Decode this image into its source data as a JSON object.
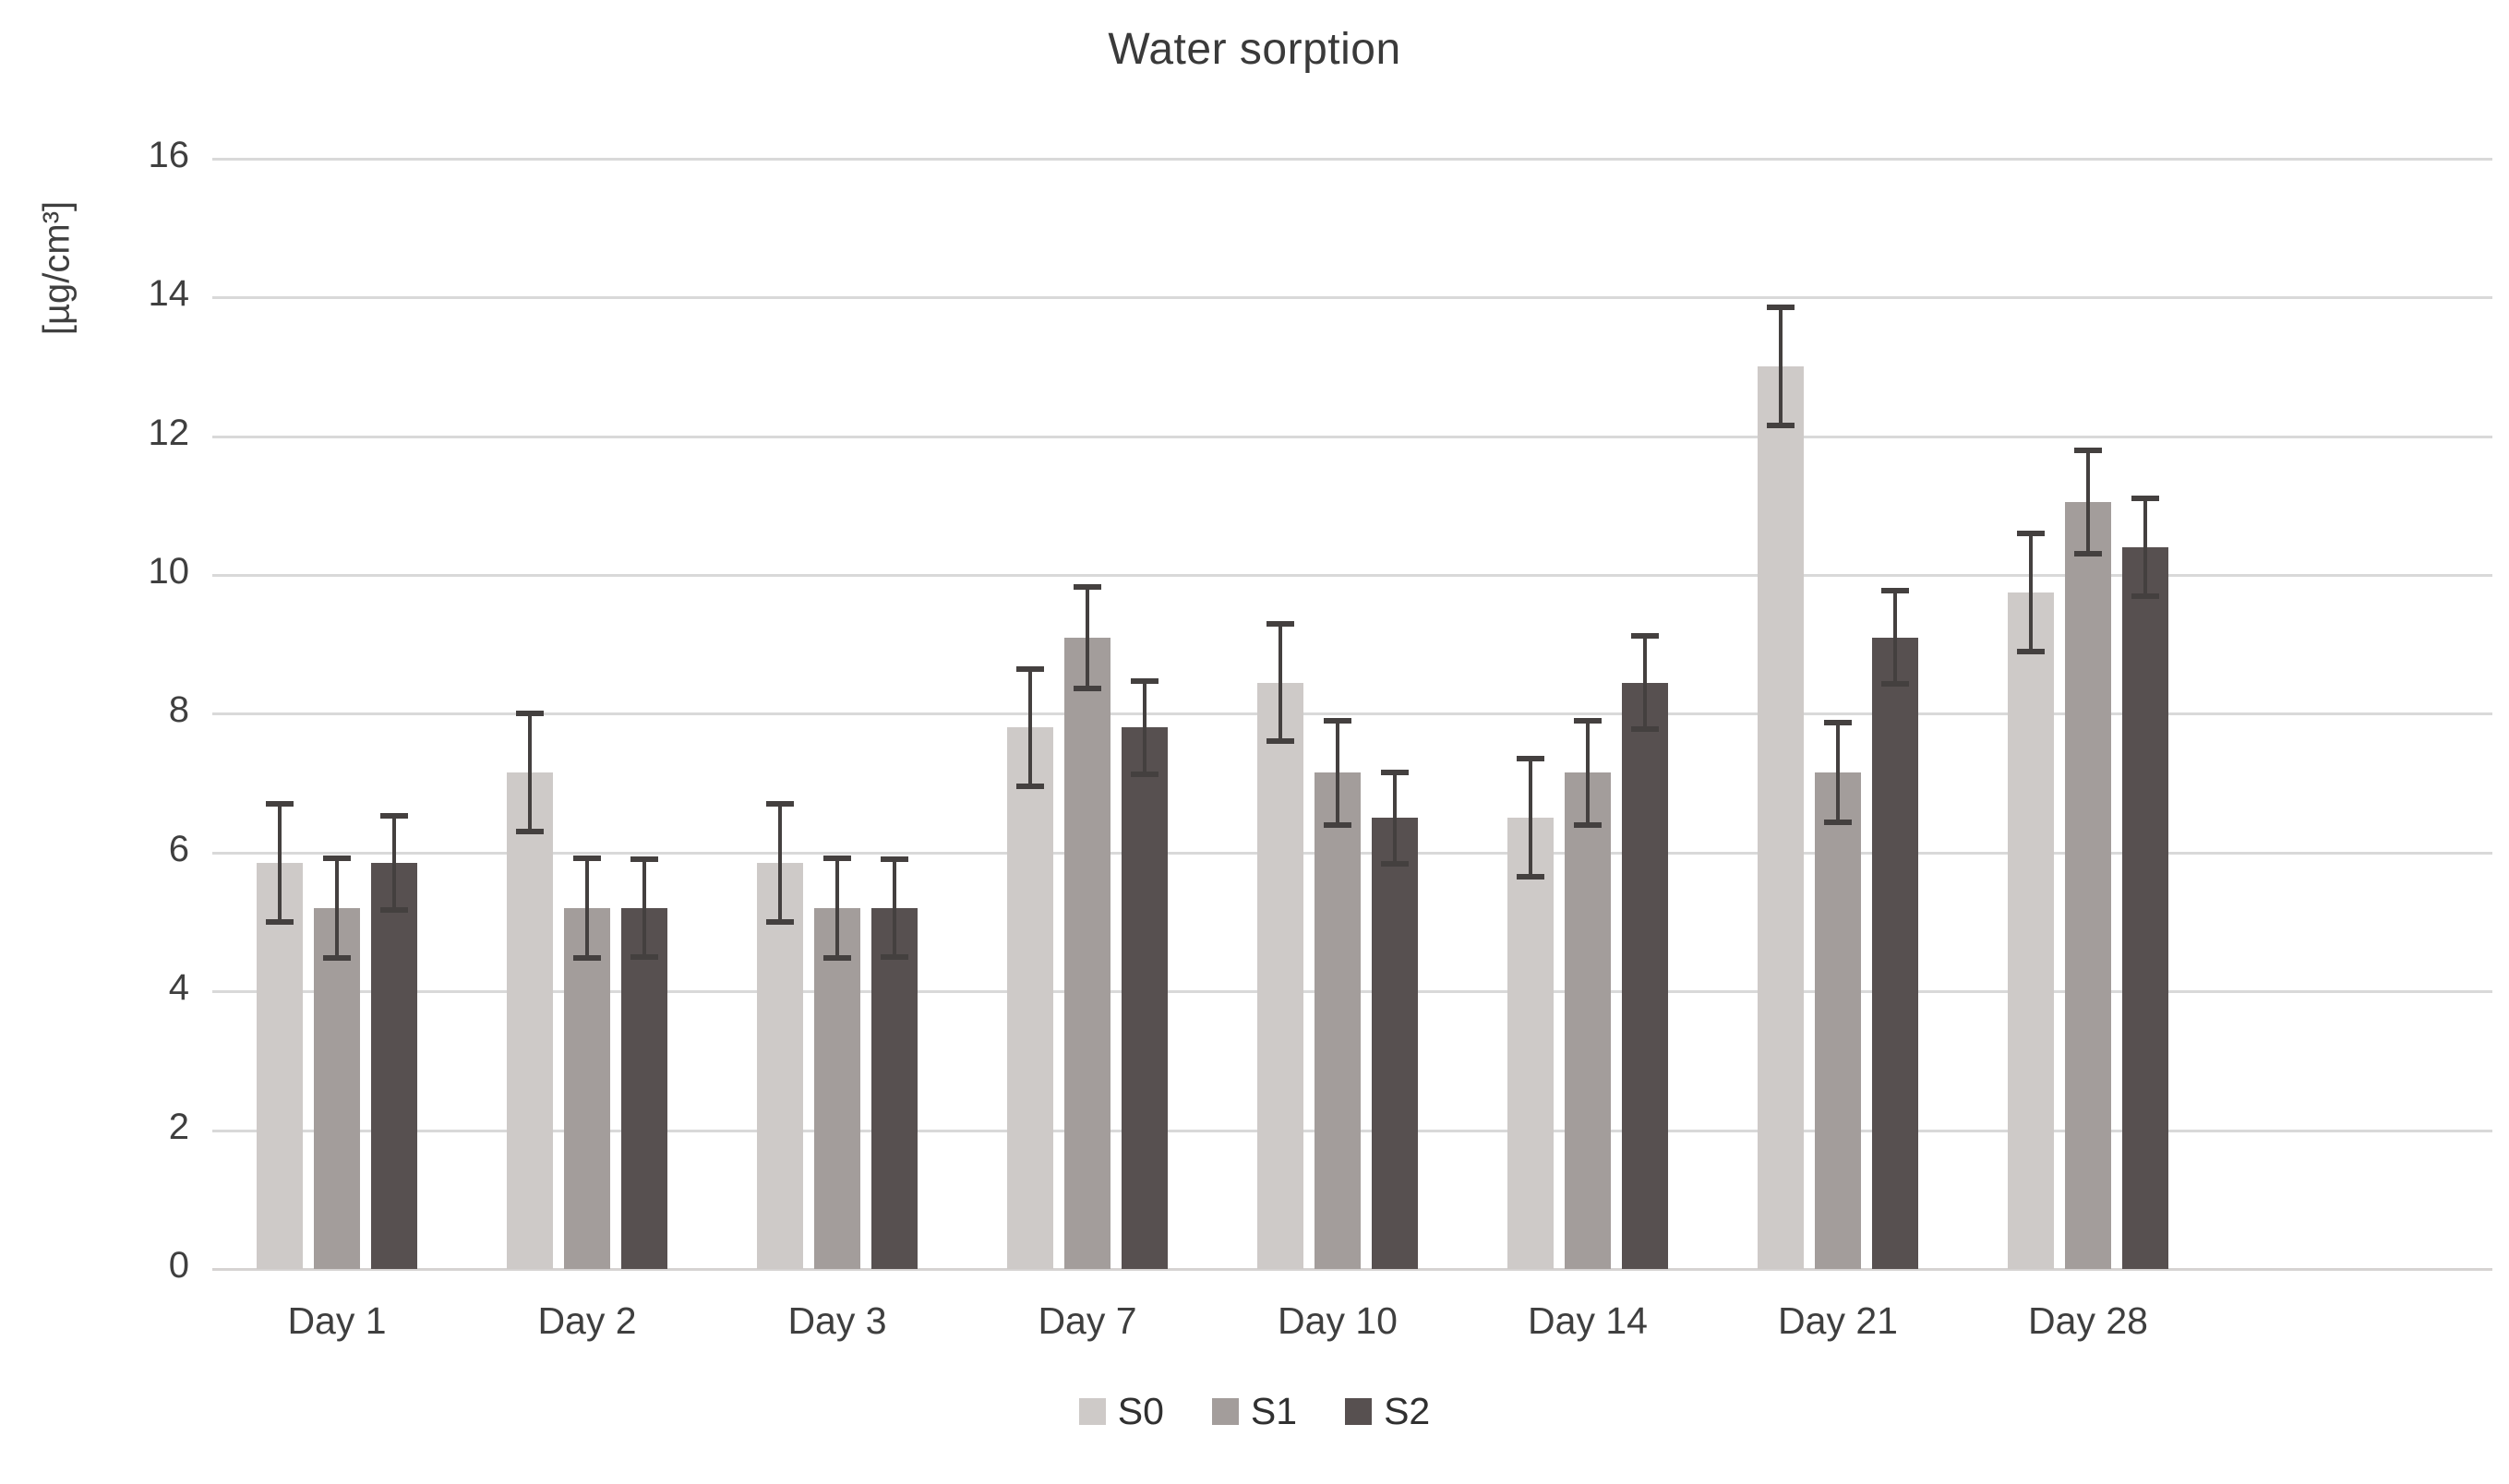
{
  "chart_data": {
    "type": "bar",
    "title": "Water sorption",
    "ylabel": "[µg/cm³]",
    "xlabel": "",
    "categories": [
      "Day 1",
      "Day 2",
      "Day 3",
      "Day 7",
      "Day 10",
      "Day 14",
      "Day 21",
      "Day 28"
    ],
    "series": [
      {
        "name": "S0",
        "color": "#cecac8",
        "values": [
          5.85,
          7.15,
          5.85,
          7.8,
          8.45,
          6.5,
          13.0,
          9.75
        ],
        "errors": [
          0.85,
          0.85,
          0.85,
          0.85,
          0.85,
          0.85,
          0.85,
          0.85
        ]
      },
      {
        "name": "S1",
        "color": "#a39d9b",
        "values": [
          5.2,
          5.2,
          5.2,
          9.1,
          7.15,
          7.15,
          7.15,
          11.05
        ],
        "errors": [
          0.72,
          0.72,
          0.72,
          0.73,
          0.75,
          0.75,
          0.72,
          0.75
        ]
      },
      {
        "name": "S2",
        "color": "#575050",
        "values": [
          5.85,
          5.2,
          5.2,
          7.8,
          6.5,
          8.45,
          9.1,
          10.4
        ],
        "errors": [
          0.68,
          0.7,
          0.7,
          0.67,
          0.66,
          0.67,
          0.67,
          0.7
        ]
      }
    ],
    "ylim": [
      0,
      16
    ],
    "yticks": [
      0,
      2,
      4,
      6,
      8,
      10,
      12,
      14,
      16
    ],
    "grid": "horizontal",
    "gridline_color": "#d9d9d9",
    "axis_line_color": "#d6d3d2",
    "axis_text_color": "#3f3f3f",
    "error_bar_color": "#44403f",
    "legend_position": "bottom",
    "background_color": "#ffffff"
  }
}
